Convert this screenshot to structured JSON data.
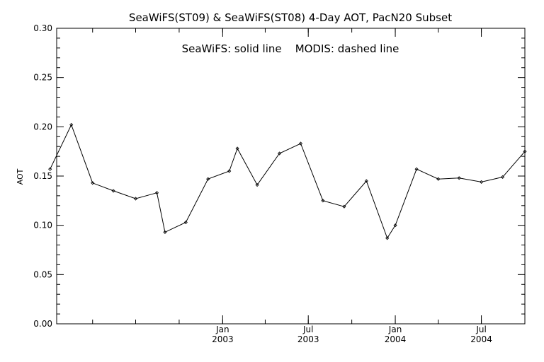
{
  "chart_data": {
    "type": "line",
    "title": "SeaWiFS(ST09) & SeaWiFS(ST08) 4-Day AOT, PacN20 Subset",
    "subtitle": "SeaWiFS: solid line    MODIS: dashed line",
    "ylabel": "AOT",
    "xlabel": "",
    "ylim": [
      0.0,
      0.3
    ],
    "y_ticks": [
      "0.00",
      "0.05",
      "0.10",
      "0.15",
      "0.20",
      "0.25",
      "0.30"
    ],
    "x_ticks": [
      {
        "month": "Jan",
        "year": "2003"
      },
      {
        "month": "Jul",
        "year": "2003"
      },
      {
        "month": "Jan",
        "year": "2004"
      },
      {
        "month": "Jul",
        "year": "2004"
      }
    ],
    "series": [
      {
        "style": "solid",
        "x": [
          "2002-01-01",
          "2002-02-15",
          "2002-04-01",
          "2002-05-15",
          "2002-07-01",
          "2002-08-15",
          "2002-09-01",
          "2002-10-15",
          "2002-12-01",
          "2003-01-15",
          "2003-02-01",
          "2003-03-15",
          "2003-05-01",
          "2003-06-15",
          "2003-08-01",
          "2003-09-15",
          "2003-11-01",
          "2003-12-15",
          "2004-01-01",
          "2004-02-15",
          "2004-04-01",
          "2004-05-15",
          "2004-07-01",
          "2004-08-15",
          "2004-10-01"
        ],
        "values": [
          0.157,
          0.202,
          0.143,
          0.135,
          0.127,
          0.133,
          0.093,
          0.103,
          0.147,
          0.155,
          0.178,
          0.141,
          0.173,
          0.183,
          0.125,
          0.119,
          0.145,
          0.087,
          0.1,
          0.157,
          0.147,
          0.148,
          0.144,
          0.149,
          0.175
        ]
      }
    ],
    "line_color": "#000000",
    "background": "#ffffff"
  }
}
